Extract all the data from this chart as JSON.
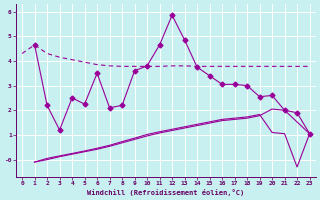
{
  "xlabel": "Windchill (Refroidissement éolien,°C)",
  "bg_color": "#c8f0f0",
  "line_color": "#990099",
  "grid_color": "#ffffff",
  "xlim": [
    -0.5,
    23.5
  ],
  "ylim": [
    -0.7,
    6.3
  ],
  "yticks": [
    0,
    1,
    2,
    3,
    4,
    5,
    6
  ],
  "ytick_labels": [
    "-0",
    "1",
    "2",
    "3",
    "4",
    "5",
    "6"
  ],
  "xticks": [
    0,
    1,
    2,
    3,
    4,
    5,
    6,
    7,
    8,
    9,
    10,
    11,
    12,
    13,
    14,
    15,
    16,
    17,
    18,
    19,
    20,
    21,
    22,
    23
  ],
  "line1_x": [
    0,
    1,
    2,
    3,
    4,
    5,
    6,
    7,
    8,
    9,
    10,
    11,
    12,
    13,
    14,
    15,
    16,
    17,
    18,
    19,
    20,
    21,
    22,
    23
  ],
  "line1_y": [
    4.3,
    4.65,
    4.3,
    4.15,
    4.05,
    3.95,
    3.85,
    3.8,
    3.78,
    3.78,
    3.78,
    3.78,
    3.8,
    3.8,
    3.78,
    3.78,
    3.78,
    3.78,
    3.78,
    3.78,
    3.78,
    3.78,
    3.78,
    3.78
  ],
  "line2_x": [
    1,
    2,
    3,
    4,
    5,
    6,
    7,
    8,
    9,
    10,
    11,
    12,
    13,
    14,
    15,
    16,
    17,
    18,
    19,
    20,
    21,
    22,
    23
  ],
  "line2_y": [
    4.65,
    2.2,
    1.2,
    2.5,
    2.25,
    3.5,
    2.1,
    2.2,
    3.6,
    3.8,
    4.65,
    5.85,
    4.85,
    3.75,
    3.4,
    3.05,
    3.05,
    3.0,
    2.55,
    2.6,
    2.0,
    1.9,
    1.05
  ],
  "line3_x": [
    1,
    2,
    3,
    4,
    5,
    6,
    7,
    8,
    9,
    10,
    11,
    12,
    13,
    14,
    15,
    16,
    17,
    18,
    19,
    20,
    21,
    23
  ],
  "line3_y": [
    -0.1,
    0.0,
    0.12,
    0.22,
    0.32,
    0.42,
    0.54,
    0.68,
    0.82,
    0.96,
    1.08,
    1.18,
    1.28,
    1.38,
    1.48,
    1.58,
    1.63,
    1.68,
    1.78,
    2.05,
    2.0,
    1.05
  ],
  "line4_x": [
    1,
    2,
    3,
    4,
    5,
    6,
    7,
    8,
    9,
    10,
    11,
    12,
    13,
    14,
    15,
    16,
    17,
    18,
    19,
    20,
    21,
    22,
    23
  ],
  "line4_y": [
    -0.1,
    0.05,
    0.15,
    0.25,
    0.35,
    0.46,
    0.58,
    0.73,
    0.87,
    1.02,
    1.13,
    1.23,
    1.33,
    1.43,
    1.53,
    1.63,
    1.68,
    1.73,
    1.83,
    1.1,
    1.05,
    -0.3,
    1.05
  ]
}
